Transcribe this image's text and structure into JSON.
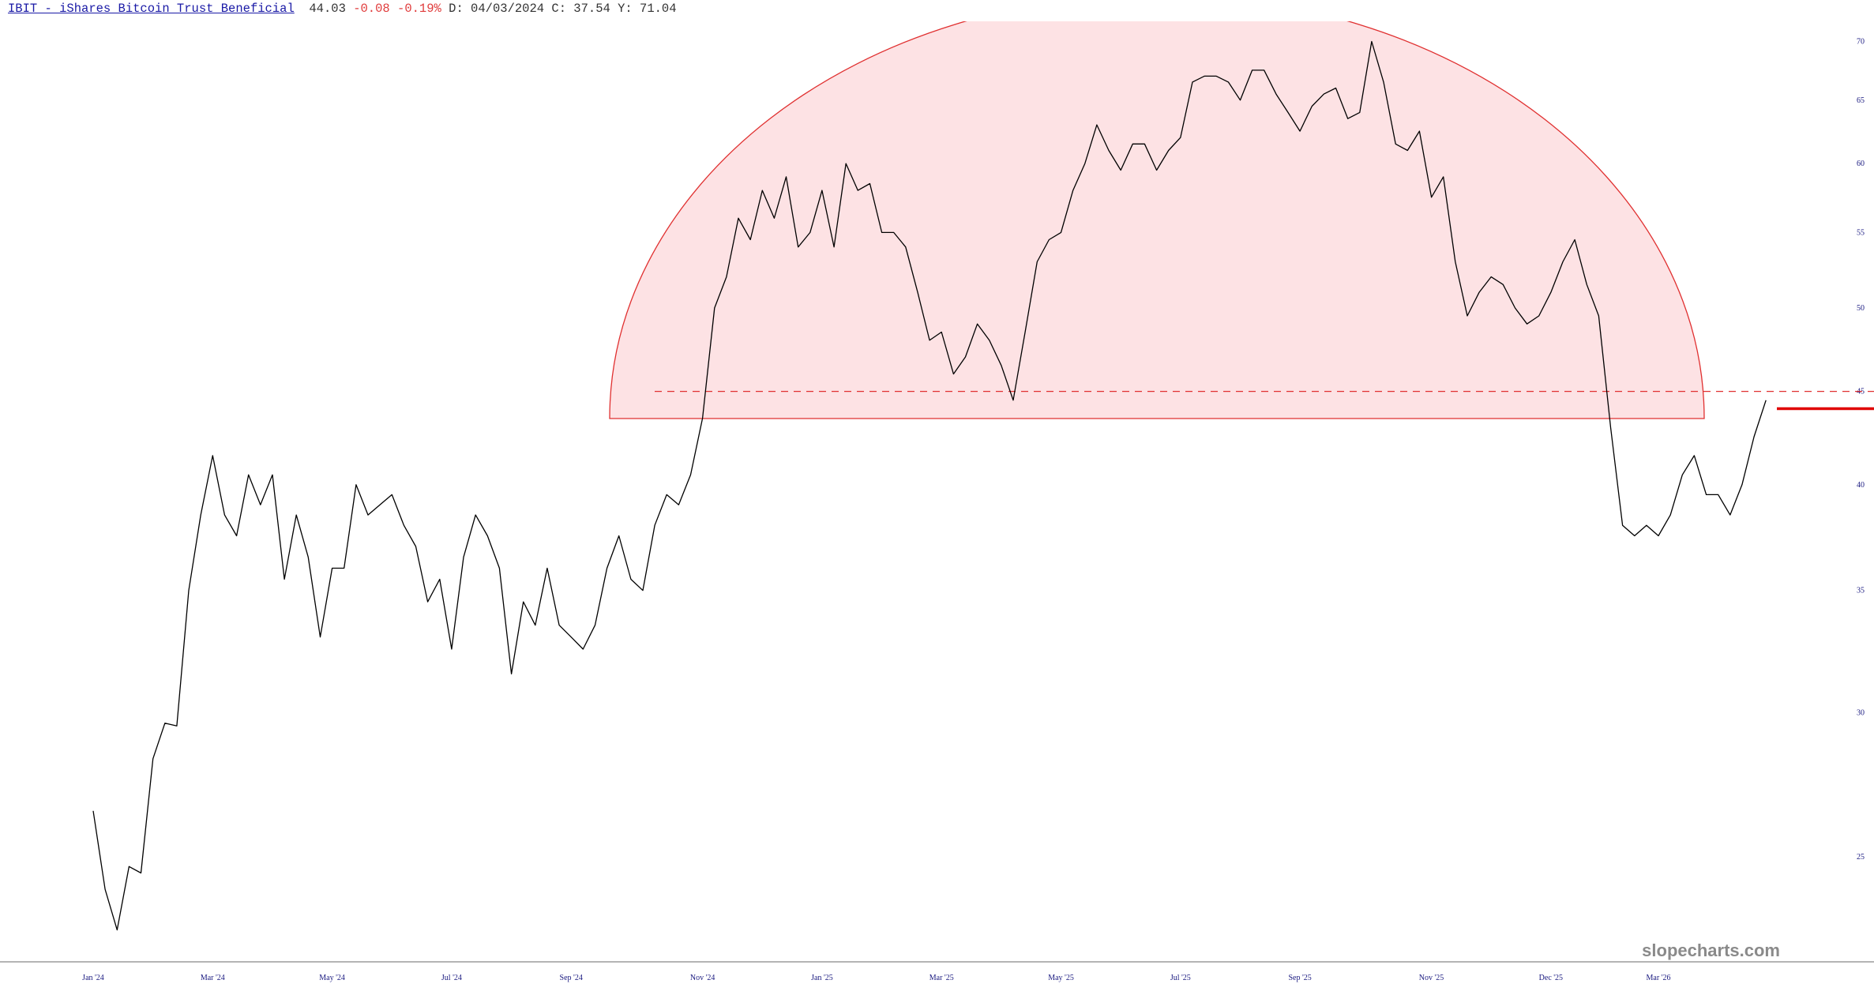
{
  "header": {
    "ticker_link": "IBIT - iShares Bitcoin Trust Beneficial",
    "price": 44.03,
    "change": "-0.08",
    "change_pct": "-0.19%",
    "date": "D: 04/03/2024",
    "close": "C: 37.54",
    "year_high": "Y: 71.04"
  },
  "watermark": "slopecharts.com",
  "chart_data": {
    "type": "line",
    "color": "#000000",
    "log_scale": true,
    "categories": [
      "Jan '24",
      null,
      null,
      null,
      null,
      null,
      null,
      null,
      null,
      null,
      "Mar '24",
      null,
      null,
      null,
      null,
      null,
      null,
      null,
      null,
      null,
      "May '24",
      null,
      null,
      null,
      null,
      null,
      null,
      null,
      null,
      null,
      "Jul '24",
      null,
      null,
      null,
      null,
      null,
      null,
      null,
      null,
      null,
      "Sep '24",
      null,
      null,
      null,
      null,
      null,
      null,
      null,
      null,
      null,
      null,
      "Nov '24",
      null,
      null,
      null,
      null,
      null,
      null,
      null,
      null,
      null,
      "Jan '25",
      null,
      null,
      null,
      null,
      null,
      null,
      null,
      null,
      null,
      "Mar '25",
      null,
      null,
      null,
      null,
      null,
      null,
      null,
      null,
      null,
      "May '25",
      null,
      null,
      null,
      null,
      null,
      null,
      null,
      null,
      null,
      "Jul '25",
      null,
      null,
      null,
      null,
      null,
      null,
      null,
      null,
      null,
      "Sep '25",
      null,
      null,
      null,
      null,
      null,
      null,
      null,
      null,
      null,
      null,
      "Nov '25",
      null,
      null,
      null,
      null,
      null,
      null,
      null,
      null,
      null,
      "Dec '25",
      null,
      null,
      null,
      null,
      null,
      null,
      null,
      null,
      "Mar '26",
      null,
      null,
      null,
      null,
      null,
      null,
      null,
      null,
      null
    ],
    "values": [
      26.5,
      24,
      22.8,
      24.7,
      24.5,
      28.3,
      29.6,
      29.5,
      35,
      38.5,
      41.5,
      38.5,
      37.5,
      40.5,
      39,
      40.5,
      35.5,
      38.5,
      36.5,
      33,
      36,
      36,
      40,
      38.5,
      39,
      39.5,
      38,
      37,
      34.5,
      35.5,
      32.5,
      36.5,
      38.5,
      37.5,
      36,
      31.5,
      34.5,
      33.5,
      36,
      33.5,
      33,
      32.5,
      33.5,
      36,
      37.5,
      35.5,
      35,
      38,
      39.5,
      39,
      40.5,
      43.5,
      50,
      52,
      56,
      54.5,
      58,
      56,
      59,
      54,
      55,
      58,
      54,
      60,
      58,
      58.5,
      55,
      55,
      54,
      51,
      48,
      48.5,
      46,
      47,
      49,
      48,
      46.5,
      44.5,
      48.5,
      53,
      54.5,
      55,
      58,
      60,
      63,
      61,
      59.5,
      61.5,
      61.5,
      59.5,
      61,
      62,
      66.5,
      67,
      67,
      66.5,
      65,
      67.5,
      67.5,
      65.5,
      64,
      62.5,
      64.5,
      65.5,
      66,
      63.5,
      64,
      70,
      66.5,
      61.5,
      61,
      62.5,
      57.5,
      59,
      53,
      49.5,
      51,
      52,
      51.5,
      50,
      49,
      49.5,
      51,
      53,
      54.5,
      51.5,
      49.5,
      43,
      38,
      37.5,
      38,
      37.5,
      38.5,
      40.5,
      41.5,
      39.5,
      39.5,
      38.5,
      40,
      42.5,
      44.5
    ],
    "ylim": [
      21.9,
      71.8
    ],
    "yticks": [
      25,
      30,
      35,
      40,
      45,
      50,
      55,
      60,
      65,
      70
    ],
    "reference_line": 45,
    "reference_color": "#e03030"
  }
}
